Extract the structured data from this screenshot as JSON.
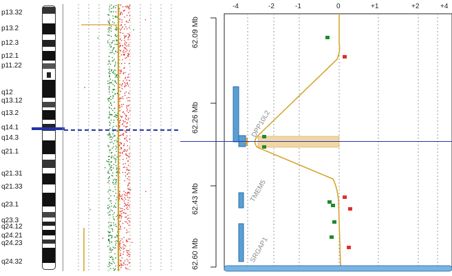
{
  "cytobands": {
    "labels": [
      "p13.32",
      "p13.2",
      "p12.3",
      "p12.1",
      "p11.22",
      "q12",
      "q13.12",
      "q13.2",
      "q14.1",
      "q14.3",
      "q21.1",
      "q21.31",
      "q21.33",
      "q23.1",
      "q23.3",
      "q24.12",
      "q24.21",
      "q24.23",
      "q24.32"
    ]
  },
  "right_panel": {
    "x_ticks": [
      "-4",
      "-2",
      "-1",
      "0",
      "+1",
      "+2",
      "+4"
    ],
    "mb_labels": [
      "62.09 Mb",
      "62.26 Mb",
      "62.43 Mb",
      "62.60 Mb"
    ],
    "genes": [
      {
        "name": "DPP10L2"
      },
      {
        "name": "TMEM5"
      },
      {
        "name": "SRGAP1"
      }
    ]
  },
  "colors": {
    "gain": "#e0302a",
    "loss": "#1f8a2c",
    "trend": "#d4a020",
    "marker": "#2233aa",
    "gene": "#5a9fd4",
    "highlight": "#f0d6a8"
  }
}
